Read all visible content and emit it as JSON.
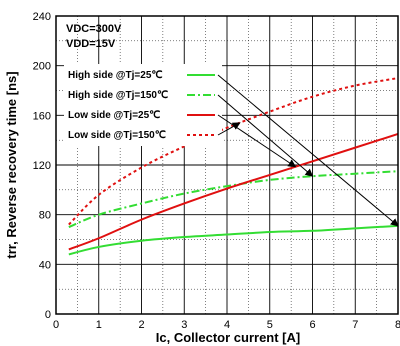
{
  "chart_data": {
    "type": "line",
    "title": "",
    "xlabel": "Ic, Collector current [A]",
    "ylabel": "trr, Reverse recovery time [ns]",
    "xlim": [
      0,
      8
    ],
    "ylim": [
      0,
      240
    ],
    "x_ticks": [
      "0",
      "1",
      "2",
      "3",
      "4",
      "5",
      "6",
      "7",
      "8"
    ],
    "y_ticks": [
      "0",
      "40",
      "80",
      "120",
      "160",
      "200",
      "240"
    ],
    "grid": true,
    "conditions": [
      "VDC=300V",
      "VDD=15V"
    ],
    "series": [
      {
        "name": "High side @Tj=25℃",
        "color": "#33dd33",
        "dash": "solid",
        "x": [
          0.3,
          1,
          2,
          3,
          4,
          5,
          6,
          7,
          8
        ],
        "y": [
          48,
          54,
          59,
          62,
          64,
          66,
          67,
          69,
          71
        ]
      },
      {
        "name": "High side @Tj=150℃",
        "color": "#33dd33",
        "dash": "dashdot",
        "x": [
          0.3,
          1,
          2,
          3,
          4,
          5,
          6,
          7,
          8
        ],
        "y": [
          70,
          80,
          89,
          97,
          103,
          108,
          111,
          113,
          115
        ]
      },
      {
        "name": "Low side @Tj=25℃",
        "color": "#e01010",
        "dash": "solid",
        "x": [
          0.3,
          1,
          2,
          3,
          4,
          5,
          6,
          7,
          8
        ],
        "y": [
          52,
          61,
          76,
          89,
          101,
          112,
          123,
          134,
          145
        ]
      },
      {
        "name": "Low side @Tj=150℃",
        "color": "#e01010",
        "dash": "dotted",
        "x": [
          0.3,
          1,
          2,
          3,
          4,
          5,
          6,
          7,
          8
        ],
        "y": [
          72,
          96,
          118,
          135,
          150,
          163,
          175,
          184,
          190
        ]
      }
    ]
  }
}
